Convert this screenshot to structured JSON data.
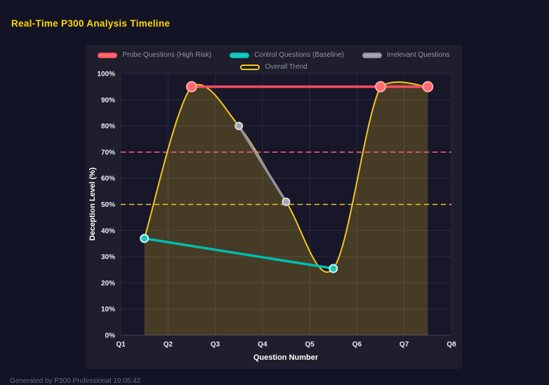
{
  "header": {
    "title": "Real-Time P300 Analysis Timeline"
  },
  "footer": {
    "text": "Generated by P300 Professional  19:05:42"
  },
  "chart_data": {
    "type": "line",
    "title": "Real-Time P300 Analysis Timeline",
    "xlabel": "Question Number",
    "ylabel": "Deception Level (%)",
    "xlim": [
      1,
      8
    ],
    "ylim": [
      0,
      100
    ],
    "grid": true,
    "legend_position": "top",
    "legend_rows": [
      [
        0,
        1,
        2
      ],
      [
        3
      ]
    ],
    "x_tick_values": [
      1,
      2,
      3,
      4,
      5,
      6,
      7,
      8
    ],
    "x_tick_labels": [
      "Q1",
      "Q2",
      "Q3",
      "Q4",
      "Q5",
      "Q6",
      "Q7",
      "Q8"
    ],
    "y_tick_values": [
      0,
      10,
      20,
      30,
      40,
      50,
      60,
      70,
      80,
      90,
      100
    ],
    "y_tick_labels": [
      "0%",
      "10%",
      "20%",
      "30%",
      "40%",
      "50%",
      "60%",
      "70%",
      "80%",
      "90%",
      "100%"
    ],
    "colors": {
      "background": "#131326",
      "panel": "#1e1e2d",
      "plot_background": "#171729",
      "grid": "#2a2a44",
      "axis_line": "#40405c",
      "title": "#ffd700",
      "axis_text": "#ecedf4",
      "legend_text": "#8f95a8"
    },
    "series": [
      {
        "name": "Probe Questions (High Risk)",
        "color": "#ff4d62",
        "marker_fill": "#ff6b6b",
        "marker_stroke": "#ffaab0",
        "marker_radius": 7,
        "line_width": 3.5,
        "swatch": "filled",
        "points": [
          [
            2.5,
            95
          ],
          [
            6.5,
            95
          ],
          [
            7.5,
            95
          ]
        ]
      },
      {
        "name": "Control Questions (Baseline)",
        "color": "#00bdb0",
        "marker_fill": "#1fc8bb",
        "marker_stroke": "#cdf2ee",
        "marker_radius": 5.5,
        "line_width": 3.5,
        "swatch": "filled",
        "points": [
          [
            1.5,
            37
          ],
          [
            5.5,
            25.5
          ]
        ]
      },
      {
        "name": "Irrelevant Questions",
        "color": "#92929f",
        "marker_fill": "#a6a6b2",
        "marker_stroke": "#d8d8e0",
        "marker_radius": 5,
        "line_width": 3.5,
        "swatch": "filled",
        "points": [
          [
            3.5,
            80
          ],
          [
            4.5,
            51
          ]
        ]
      },
      {
        "name": "Overall Trend",
        "color": "#f3c51d",
        "smooth": true,
        "area": true,
        "area_opacity": 0.22,
        "line_width": 2,
        "swatch": "outline",
        "points": [
          [
            1.5,
            37
          ],
          [
            2.5,
            95
          ],
          [
            3.5,
            80
          ],
          [
            4.5,
            51
          ],
          [
            5.5,
            25.5
          ],
          [
            6.5,
            95
          ],
          [
            7.5,
            95
          ]
        ]
      }
    ],
    "thresholds": [
      {
        "value": 70,
        "color": "#ff5577",
        "style": "dashed"
      },
      {
        "value": 50,
        "color": "#f3c51d",
        "style": "dashed"
      }
    ]
  }
}
